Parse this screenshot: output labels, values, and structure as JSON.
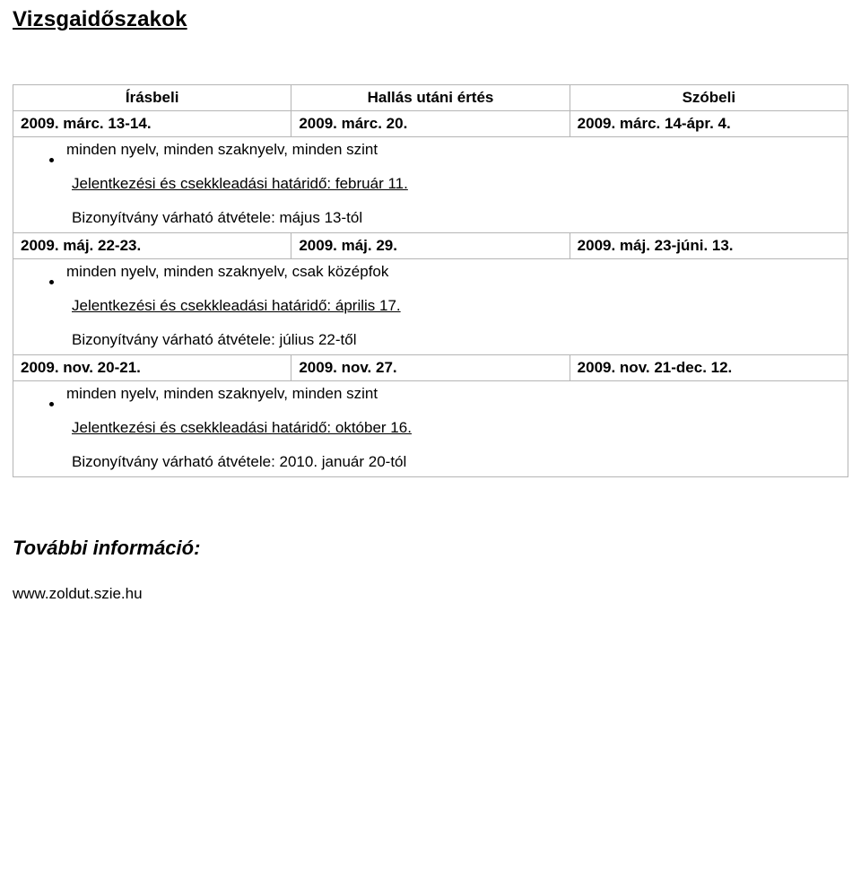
{
  "title": "Vizsgaidőszakok",
  "headers": {
    "col1": "Írásbeli",
    "col2": "Hallás utáni értés",
    "col3": "Szóbeli"
  },
  "sessions": [
    {
      "dates": {
        "written": "2009. márc. 13-14.",
        "listening": "2009. márc. 20.",
        "oral": "2009. márc. 14-ápr. 4."
      },
      "scope": "minden nyelv, minden szaknyelv, minden szint",
      "deadline": "Jelentkezési és csekkleadási határidő: február 11.",
      "receipt": "Bizonyítvány várható átvétele: május 13-tól"
    },
    {
      "dates": {
        "written": "2009. máj. 22-23.",
        "listening": "2009. máj. 29.",
        "oral": "2009. máj. 23-júni. 13."
      },
      "scope": "minden nyelv, minden szaknyelv, csak középfok",
      "deadline": "Jelentkezési és csekkleadási határidő: április 17.",
      "receipt": "Bizonyítvány várható átvétele: július 22-től"
    },
    {
      "dates": {
        "written": "2009. nov. 20-21.",
        "listening": "2009. nov. 27.",
        "oral": "2009. nov. 21-dec. 12."
      },
      "scope": "minden nyelv, minden szaknyelv, minden szint",
      "deadline": "Jelentkezési és csekkleadási határidő: október 16.",
      "receipt": "Bizonyítvány várható átvétele: 2010. január 20-tól"
    }
  ],
  "moreInfo": {
    "title": "További információ:",
    "url": "www.zoldut.szie.hu"
  },
  "colors": {
    "border": "#b5b5b5",
    "text": "#000000",
    "background": "#ffffff"
  }
}
